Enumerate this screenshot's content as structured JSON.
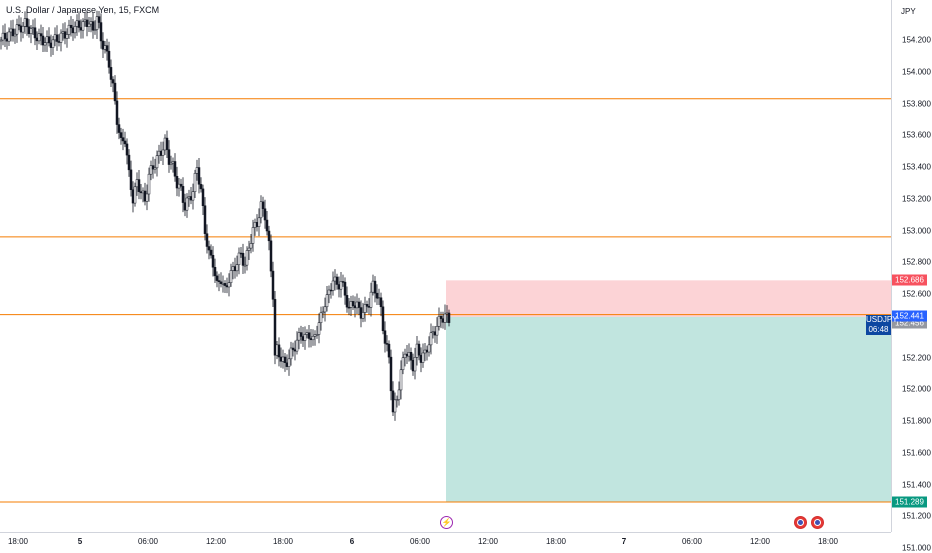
{
  "header": {
    "title": "U.S. Dollar / Japanese Yen, 15, FXCM"
  },
  "price_axis": {
    "currency": "JPY",
    "ticks": [
      "154.200",
      "154.000",
      "153.800",
      "153.600",
      "153.400",
      "153.200",
      "153.000",
      "152.800",
      "152.600",
      "152.200",
      "152.000",
      "151.800",
      "151.600",
      "151.400",
      "151.200",
      "151.000"
    ],
    "tags": {
      "stop": "152.686",
      "entry": "152.456",
      "last": "152.441",
      "target": "151.289"
    }
  },
  "symbol_label": {
    "symbol": "USDJPY",
    "countdown": "06:48"
  },
  "time_axis": {
    "ticks": [
      {
        "label": "18:00",
        "bold": false
      },
      {
        "label": "5",
        "bold": true
      },
      {
        "label": "06:00",
        "bold": false
      },
      {
        "label": "12:00",
        "bold": false
      },
      {
        "label": "18:00",
        "bold": false
      },
      {
        "label": "6",
        "bold": true
      },
      {
        "label": "06:00",
        "bold": false
      },
      {
        "label": "12:00",
        "bold": false
      },
      {
        "label": "18:00",
        "bold": false
      },
      {
        "label": "7",
        "bold": true
      },
      {
        "label": "06:00",
        "bold": false
      },
      {
        "label": "12:00",
        "bold": false
      },
      {
        "label": "18:00",
        "bold": false
      }
    ]
  },
  "drawings": {
    "horizontal_levels": [
      153.83,
      152.96,
      152.47,
      151.29
    ],
    "position": {
      "type": "short",
      "entry": 152.456,
      "stop": 152.686,
      "target": 151.289,
      "start_time": "6 ~08:00"
    }
  },
  "events": [
    {
      "icon": "lightning-event-icon",
      "time": "6 ~08:00"
    },
    {
      "icon": "us-flag-event-icon",
      "time": "7 ~15:30"
    },
    {
      "icon": "us-flag-event-icon",
      "time": "7 ~16:00"
    }
  ],
  "colors": {
    "candle": "#131722",
    "level_line": "#f57c00",
    "stop_zone": "rgba(242,54,69,0.22)",
    "target_zone": "rgba(8,153,129,0.25)",
    "stop_tag": "#f7525f",
    "entry_tag": "#9598a1",
    "last_tag": "#2962ff",
    "target_tag": "#089981",
    "symbol_label": "#0d47a1"
  },
  "chart_data": {
    "type": "candlestick",
    "symbol": "USDJPY",
    "timeframe": "15",
    "ylim": [
      150.95,
      154.35
    ],
    "close_path": [
      [
        0,
        154.2
      ],
      [
        12,
        154.25
      ],
      [
        24,
        154.3
      ],
      [
        36,
        154.22
      ],
      [
        48,
        154.18
      ],
      [
        60,
        154.22
      ],
      [
        72,
        154.28
      ],
      [
        84,
        154.3
      ],
      [
        88,
        154.32
      ],
      [
        92,
        154.25
      ],
      [
        96,
        154.35
      ],
      [
        100,
        154.2
      ],
      [
        104,
        154.15
      ],
      [
        108,
        154.05
      ],
      [
        112,
        153.9
      ],
      [
        116,
        153.7
      ],
      [
        120,
        153.55
      ],
      [
        124,
        153.58
      ],
      [
        128,
        153.35
      ],
      [
        132,
        153.2
      ],
      [
        136,
        153.3
      ],
      [
        140,
        153.25
      ],
      [
        144,
        153.18
      ],
      [
        148,
        153.35
      ],
      [
        152,
        153.4
      ],
      [
        156,
        153.45
      ],
      [
        160,
        153.5
      ],
      [
        164,
        153.55
      ],
      [
        168,
        153.45
      ],
      [
        172,
        153.4
      ],
      [
        176,
        153.3
      ],
      [
        180,
        153.25
      ],
      [
        184,
        153.15
      ],
      [
        188,
        153.2
      ],
      [
        192,
        153.25
      ],
      [
        196,
        153.4
      ],
      [
        200,
        153.25
      ],
      [
        204,
        153.0
      ],
      [
        208,
        152.85
      ],
      [
        212,
        152.8
      ],
      [
        216,
        152.65
      ],
      [
        220,
        152.7
      ],
      [
        224,
        152.62
      ],
      [
        228,
        152.7
      ],
      [
        232,
        152.75
      ],
      [
        236,
        152.8
      ],
      [
        240,
        152.85
      ],
      [
        244,
        152.78
      ],
      [
        248,
        152.9
      ],
      [
        252,
        153.0
      ],
      [
        256,
        153.05
      ],
      [
        260,
        153.15
      ],
      [
        264,
        153.1
      ],
      [
        268,
        152.9
      ],
      [
        272,
        152.6
      ],
      [
        274,
        152.2
      ],
      [
        276,
        152.25
      ],
      [
        280,
        152.2
      ],
      [
        284,
        152.15
      ],
      [
        288,
        152.2
      ],
      [
        292,
        152.25
      ],
      [
        296,
        152.3
      ],
      [
        300,
        152.35
      ],
      [
        304,
        152.32
      ],
      [
        308,
        152.35
      ],
      [
        312,
        152.3
      ],
      [
        316,
        152.38
      ],
      [
        320,
        152.45
      ],
      [
        324,
        152.55
      ],
      [
        328,
        152.6
      ],
      [
        332,
        152.7
      ],
      [
        336,
        152.65
      ],
      [
        340,
        152.68
      ],
      [
        344,
        152.6
      ],
      [
        348,
        152.5
      ],
      [
        352,
        152.55
      ],
      [
        356,
        152.52
      ],
      [
        360,
        152.48
      ],
      [
        364,
        152.5
      ],
      [
        368,
        152.55
      ],
      [
        372,
        152.65
      ],
      [
        376,
        152.6
      ],
      [
        380,
        152.5
      ],
      [
        384,
        152.3
      ],
      [
        388,
        152.2
      ],
      [
        392,
        151.85
      ],
      [
        396,
        151.95
      ],
      [
        400,
        152.1
      ],
      [
        404,
        152.25
      ],
      [
        408,
        152.2
      ],
      [
        412,
        152.15
      ],
      [
        416,
        152.25
      ],
      [
        420,
        152.2
      ],
      [
        424,
        152.22
      ],
      [
        428,
        152.3
      ],
      [
        432,
        152.35
      ],
      [
        436,
        152.4
      ],
      [
        440,
        152.45
      ],
      [
        444,
        152.46
      ],
      [
        448,
        152.441
      ]
    ]
  }
}
